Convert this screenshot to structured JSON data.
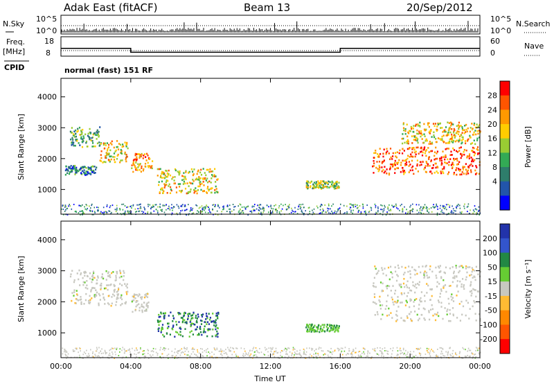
{
  "header": {
    "radar": "Adak East (fitACF)",
    "beam": "Beam 13",
    "date": "20/Sep/2012"
  },
  "nsky_panel": {
    "left_label": "N.Sky",
    "right_label": "N.Search",
    "left_ticks": [
      "10^5",
      "10^0"
    ],
    "right_ticks": [
      "10^5",
      "10^0"
    ]
  },
  "freq_panel": {
    "left_label_1": "Freq.",
    "left_label_2": "[MHz]",
    "right_label": "Nave",
    "left_ticks": [
      "18",
      "8"
    ],
    "right_ticks": [
      "60",
      "0"
    ]
  },
  "cpid": {
    "label": "CPID",
    "value": "normal (fast) 151 RF"
  },
  "chart_data": [
    {
      "type": "heatmap",
      "name": "power",
      "ylabel": "Slant Range [km]",
      "ylim": [
        200,
        4600
      ],
      "y_ticks": [
        "1000",
        "2000",
        "3000",
        "4000"
      ],
      "x_ticks": [
        "00:00",
        "04:00",
        "08:00",
        "12:00",
        "16:00",
        "20:00",
        "00:00"
      ],
      "colorbar_label": "Power [dB]",
      "colorbar_ticks": [
        "28",
        "24",
        "20",
        "16",
        "12",
        "8",
        "4"
      ],
      "colorbar_colors": [
        "#ff0000",
        "#ff5500",
        "#ff9900",
        "#ffcc00",
        "#99cc33",
        "#33aa55",
        "#2e7d6b",
        "#2255aa",
        "#0000ff"
      ],
      "regions": [
        {
          "t": [
            0.5,
            2.2
          ],
          "r": [
            2400,
            3050
          ],
          "level": 14
        },
        {
          "t": [
            0.2,
            2.0
          ],
          "r": [
            1500,
            1800
          ],
          "level": 8
        },
        {
          "t": [
            2.2,
            3.8
          ],
          "r": [
            1900,
            2600
          ],
          "level": 20
        },
        {
          "t": [
            4.0,
            5.2
          ],
          "r": [
            1600,
            2200
          ],
          "level": 22
        },
        {
          "t": [
            5.5,
            9.0
          ],
          "r": [
            900,
            1700
          ],
          "level": 18
        },
        {
          "t": [
            14.0,
            15.9
          ],
          "r": [
            1050,
            1300
          ],
          "level": 16
        },
        {
          "t": [
            17.8,
            24.0
          ],
          "r": [
            1500,
            2400
          ],
          "level": 26
        },
        {
          "t": [
            19.5,
            24.0
          ],
          "r": [
            2500,
            3200
          ],
          "level": 20
        }
      ]
    },
    {
      "type": "heatmap",
      "name": "velocity",
      "ylabel": "Slant Range [km]",
      "ylim": [
        200,
        4600
      ],
      "y_ticks": [
        "1000",
        "2000",
        "3000",
        "4000"
      ],
      "x_ticks": [
        "00:00",
        "04:00",
        "08:00",
        "12:00",
        "16:00",
        "20:00",
        "00:00"
      ],
      "xlabel": "Time UT",
      "colorbar_label": "Velocity [m s⁻¹]",
      "colorbar_ticks": [
        "200",
        "100",
        "50",
        "15",
        "-15",
        "-50",
        "-100",
        "-200"
      ],
      "colorbar_colors": [
        "#2233aa",
        "#3355cc",
        "#228844",
        "#66cc33",
        "#c8c8c0",
        "#ffbb33",
        "#ff8800",
        "#ff5500",
        "#ff0000"
      ],
      "regions": [
        {
          "t": [
            0.5,
            3.8
          ],
          "r": [
            1900,
            3050
          ],
          "level": 0
        },
        {
          "t": [
            4.0,
            5.0
          ],
          "r": [
            1700,
            2300
          ],
          "level": 0
        },
        {
          "t": [
            5.5,
            9.0
          ],
          "r": [
            900,
            1700
          ],
          "level": 60
        },
        {
          "t": [
            14.0,
            15.9
          ],
          "r": [
            1050,
            1300
          ],
          "level": 40
        },
        {
          "t": [
            17.8,
            24.0
          ],
          "r": [
            1400,
            3200
          ],
          "level": 0
        }
      ]
    }
  ],
  "freq_series": {
    "t": [
      0,
      4,
      4,
      16,
      16,
      24
    ],
    "freq": [
      12,
      12,
      10,
      10,
      12,
      12
    ]
  }
}
